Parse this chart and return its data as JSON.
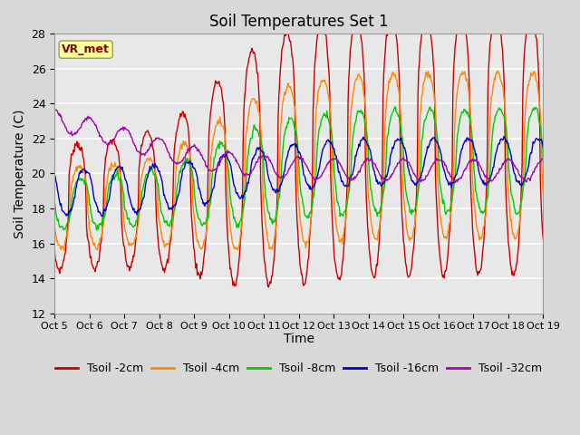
{
  "title": "Soil Temperatures Set 1",
  "xlabel": "Time",
  "ylabel": "Soil Temperature (C)",
  "ylim": [
    12,
    28
  ],
  "yticks": [
    12,
    14,
    16,
    18,
    20,
    22,
    24,
    26,
    28
  ],
  "x_labels": [
    "Oct 5",
    "Oct 6",
    "Oct 7",
    "Oct 8",
    "Oct 9",
    "Oct 10",
    "Oct 11",
    "Oct 12",
    "Oct 13",
    "Oct 14",
    "Oct 15",
    "Oct 16",
    "Oct 17",
    "Oct 18",
    "Oct 19"
  ],
  "colors": {
    "Tsoil -2cm": "#cc0000",
    "Tsoil -4cm": "#ff8800",
    "Tsoil -8cm": "#00cc00",
    "Tsoil -16cm": "#0000cc",
    "Tsoil -32cm": "#aa00aa"
  },
  "legend_label": "VR_met",
  "fig_facecolor": "#d8d8d8",
  "ax_facecolor": "#e8e8e8",
  "grid_color": "#ffffff"
}
